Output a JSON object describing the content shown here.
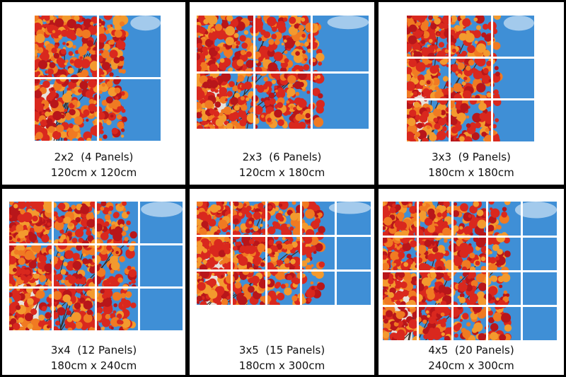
{
  "options": [
    {
      "grid": "2x2",
      "panels": "(4 Panels)",
      "size": "120cm x 120cm"
    },
    {
      "grid": "2x3",
      "panels": "(6 Panels)",
      "size": "120cm x 180cm"
    },
    {
      "grid": "3x3",
      "panels": "(9 Panels)",
      "size": "180cm x 180cm"
    },
    {
      "grid": "3x4",
      "panels": "(12 Panels)",
      "size": "180cm x 240cm"
    },
    {
      "grid": "3x5",
      "panels": "(15 Panels)",
      "size": "180cm x 300cm"
    },
    {
      "grid": "4x5",
      "panels": "(20 Panels)",
      "size": "240cm x 300cm"
    }
  ],
  "colors": {
    "sky": "#3f8fd6",
    "leaf_red": "#d9281e",
    "leaf_orange": "#f07a22",
    "divider": "#ffffff"
  }
}
